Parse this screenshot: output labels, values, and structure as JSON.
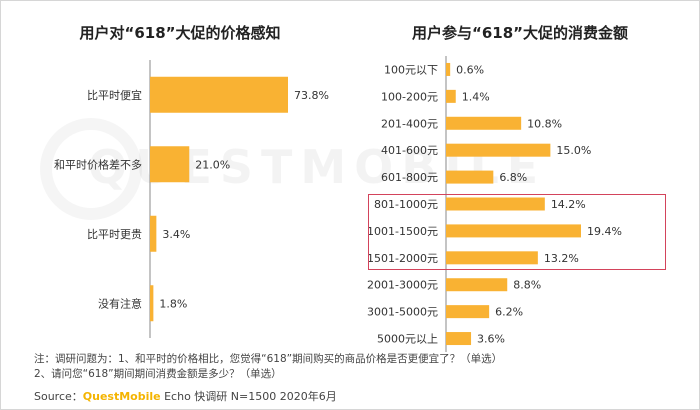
{
  "colors": {
    "bar": "#f9b233",
    "axis": "#888888",
    "highlight": "#d3435b",
    "brand": "#f4b400"
  },
  "watermark": "QUESTMOBILE",
  "chart_data": [
    {
      "type": "bar",
      "orientation": "horizontal",
      "title": "用户对“618”大促的价格感知",
      "categories": [
        "比平时便宜",
        "和平时价格差不多",
        "比平时更贵",
        "没有注意"
      ],
      "values": [
        73.8,
        21.0,
        3.4,
        1.8
      ],
      "labels": [
        "73.8%",
        "21.0%",
        "3.4%",
        "1.8%"
      ],
      "unit": "%"
    },
    {
      "type": "bar",
      "orientation": "horizontal",
      "title": "用户参与“618”大促的消费金额",
      "categories": [
        "100元以下",
        "100-200元",
        "201-400元",
        "401-600元",
        "601-800元",
        "801-1000元",
        "1001-1500元",
        "1501-2000元",
        "2001-3000元",
        "3001-5000元",
        "5000元以上"
      ],
      "values": [
        0.6,
        1.4,
        10.8,
        15.0,
        6.8,
        14.2,
        19.4,
        13.2,
        8.8,
        6.2,
        3.6
      ],
      "labels": [
        "0.6%",
        "1.4%",
        "10.8%",
        "15.0%",
        "6.8%",
        "14.2%",
        "19.4%",
        "13.2%",
        "8.8%",
        "6.2%",
        "3.6%"
      ],
      "unit": "%",
      "highlighted_categories": [
        "801-1000元",
        "1001-1500元",
        "1501-2000元"
      ]
    }
  ],
  "notes": {
    "line1": "注：调研问题为：1、和平时的价格相比，您觉得“618”期间购买的商品价格是否更便宜了？（单选）",
    "line2": "2、请问您“618”期间期间消费金额是多少？（单选）"
  },
  "source": {
    "prefix": "Source：",
    "brand": "QuestMobile",
    "rest": " Echo 快调研 N=1500 2020年6月"
  }
}
